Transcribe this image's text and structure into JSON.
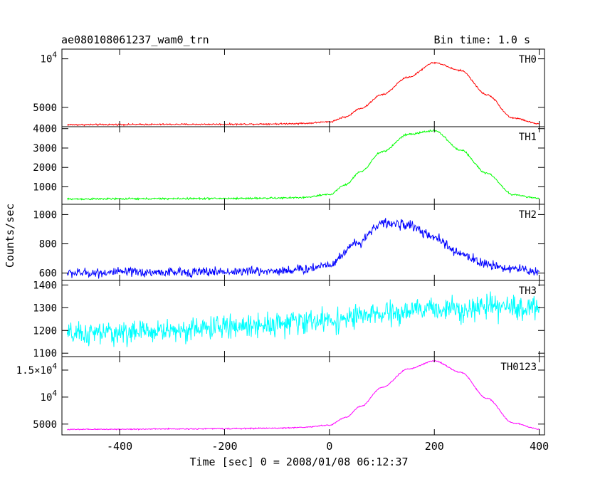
{
  "chart_data": {
    "type": "line",
    "title": "ae080108061237_wam0_trn",
    "subtitle": "Bin time: 1.0 s",
    "xlabel": "Time [sec] 0 = 2008/01/08 06:12:37",
    "ylabel": "Counts/sec",
    "xlim": [
      -510,
      410
    ],
    "xticks": [
      "-400",
      "-200",
      "0",
      "200",
      "400"
    ],
    "xtick_values": [
      -400,
      -200,
      0,
      200,
      400
    ],
    "grid": false,
    "panels": [
      {
        "name": "TH0",
        "color": "#ff0000",
        "ylim": [
          3000,
          11000
        ],
        "yticks": [
          {
            "v": 5000,
            "label": "5000"
          },
          {
            "v": 10000,
            "label": "10",
            "exp": "4"
          }
        ],
        "noise": 70,
        "x": [
          -500,
          -400,
          -300,
          -200,
          -100,
          -50,
          0,
          30,
          60,
          100,
          150,
          200,
          250,
          300,
          350,
          400
        ],
        "y": [
          3200,
          3220,
          3240,
          3250,
          3290,
          3340,
          3500,
          4000,
          4900,
          6300,
          8100,
          9600,
          8800,
          6300,
          3900,
          3300
        ]
      },
      {
        "name": "TH1",
        "color": "#00ff00",
        "ylim": [
          100,
          4100
        ],
        "yticks": [
          {
            "v": 1000,
            "label": "1000"
          },
          {
            "v": 2000,
            "label": "2000"
          },
          {
            "v": 3000,
            "label": "3000"
          },
          {
            "v": 4000,
            "label": "4000"
          }
        ],
        "noise": 40,
        "x": [
          -500,
          -400,
          -300,
          -200,
          -100,
          -50,
          0,
          30,
          60,
          100,
          150,
          200,
          250,
          300,
          350,
          400
        ],
        "y": [
          370,
          380,
          390,
          400,
          420,
          450,
          600,
          1100,
          1800,
          2800,
          3700,
          3900,
          2900,
          1700,
          600,
          400
        ]
      },
      {
        "name": "TH2",
        "color": "#0000ff",
        "ylim": [
          550,
          1070
        ],
        "yticks": [
          {
            "v": 600,
            "label": "600"
          },
          {
            "v": 800,
            "label": "800"
          },
          {
            "v": 1000,
            "label": "1000"
          }
        ],
        "noise": 28,
        "x": [
          -500,
          -400,
          -300,
          -200,
          -100,
          -50,
          0,
          50,
          100,
          150,
          200,
          250,
          300,
          350,
          400
        ],
        "y": [
          600,
          605,
          605,
          610,
          615,
          625,
          660,
          800,
          940,
          930,
          840,
          730,
          660,
          630,
          610
        ]
      },
      {
        "name": "TH3",
        "color": "#00ffff",
        "ylim": [
          1085,
          1420
        ],
        "yticks": [
          {
            "v": 1100,
            "label": "1100"
          },
          {
            "v": 1200,
            "label": "1200"
          },
          {
            "v": 1300,
            "label": "1300"
          },
          {
            "v": 1400,
            "label": "1400"
          }
        ],
        "noise": 45,
        "x": [
          -500,
          -400,
          -300,
          -200,
          -100,
          0,
          100,
          200,
          300,
          400
        ],
        "y": [
          1180,
          1190,
          1200,
          1215,
          1230,
          1245,
          1270,
          1295,
          1300,
          1300
        ]
      },
      {
        "name": "TH0123",
        "color": "#ff00ff",
        "ylim": [
          3000,
          17500
        ],
        "yticks": [
          {
            "v": 5000,
            "label": "5000"
          },
          {
            "v": 10000,
            "label": "10",
            "exp": "4"
          },
          {
            "v": 15000,
            "label": "1.5×10",
            "exp": "4"
          }
        ],
        "noise": 90,
        "x": [
          -500,
          -400,
          -300,
          -200,
          -100,
          -50,
          0,
          30,
          60,
          100,
          150,
          200,
          250,
          300,
          350,
          400
        ],
        "y": [
          4000,
          4050,
          4100,
          4150,
          4250,
          4400,
          4800,
          6200,
          8300,
          11800,
          15200,
          16700,
          14600,
          9800,
          5200,
          4100
        ]
      }
    ]
  }
}
